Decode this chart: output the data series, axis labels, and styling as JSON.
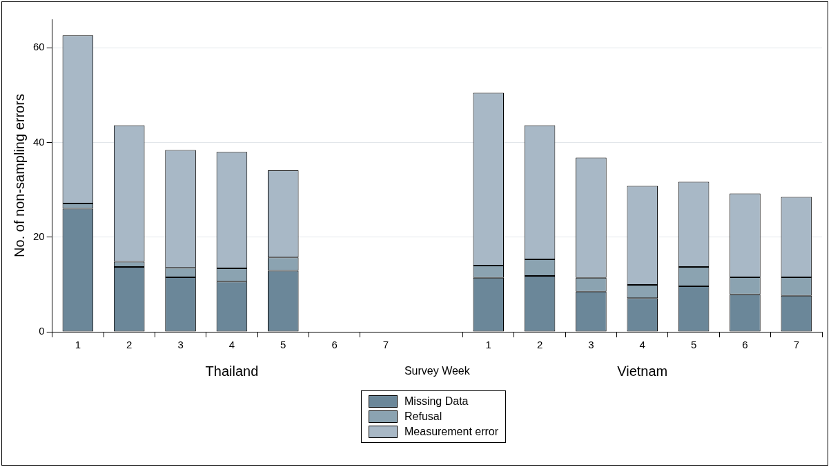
{
  "chart_data": {
    "type": "bar",
    "stacked": true,
    "ylabel": "No. of non-sampling errors",
    "xlabel": "Survey Week",
    "annotations": [
      "Thailand",
      "Vietnam"
    ],
    "categories": [
      "1",
      "2",
      "3",
      "4",
      "5",
      "6",
      "7",
      null,
      "1",
      "2",
      "3",
      "4",
      "5",
      "6",
      "7"
    ],
    "series": [
      {
        "name": "Missing Data",
        "color": "#6b8799",
        "values": [
          26.0,
          13.7,
          11.5,
          10.6,
          12.9,
          null,
          null,
          null,
          11.4,
          11.8,
          8.5,
          7.1,
          9.6,
          7.9,
          7.6
        ]
      },
      {
        "name": "Refusal",
        "color": "#8ba3b1",
        "values": [
          1.1,
          1.1,
          2.0,
          2.8,
          2.8,
          null,
          null,
          null,
          2.6,
          3.5,
          2.9,
          2.8,
          4.1,
          3.6,
          3.9
        ]
      },
      {
        "name": "Measurement error",
        "color": "#a8b8c6",
        "values": [
          35.5,
          28.8,
          24.9,
          24.6,
          18.4,
          null,
          null,
          null,
          36.5,
          28.3,
          25.4,
          20.9,
          18.0,
          17.7,
          17.0
        ]
      }
    ],
    "ylim": [
      0,
      66
    ],
    "yticks": [
      0,
      20,
      40,
      60
    ],
    "grid": "y",
    "legend": "bottom"
  }
}
